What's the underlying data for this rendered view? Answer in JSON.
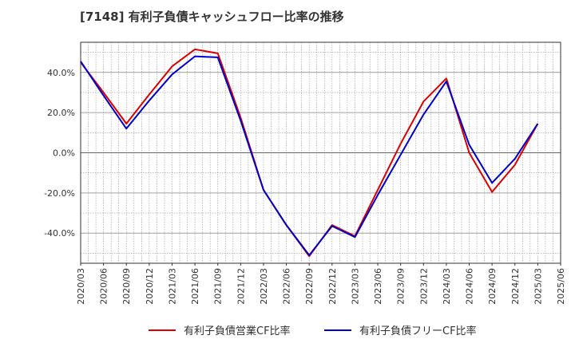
{
  "chart_data": {
    "type": "line",
    "title": "[7148]  有利子負債キャッシュフロー比率の推移",
    "xlabel": "",
    "ylabel": "",
    "ylim": [
      -55,
      55
    ],
    "yticks": [
      -40,
      -20,
      0,
      20,
      40
    ],
    "ytick_labels": [
      "-40.0%",
      "-20.0%",
      "0.0%",
      "20.0%",
      "40.0%"
    ],
    "xticks": [
      "2020/03",
      "2020/06",
      "2020/09",
      "2020/12",
      "2021/03",
      "2021/06",
      "2021/09",
      "2021/12",
      "2022/03",
      "2022/06",
      "2022/09",
      "2022/12",
      "2023/03",
      "2023/06",
      "2023/09",
      "2023/12",
      "2024/03",
      "2024/06",
      "2024/09",
      "2024/12",
      "2025/03",
      "2025/06"
    ],
    "x": [
      "2020/03",
      "2020/06",
      "2020/09",
      "2020/12",
      "2021/03",
      "2021/06",
      "2021/09",
      "2021/12",
      "2022/03",
      "2022/06",
      "2022/09",
      "2022/12",
      "2023/03",
      "2023/06",
      "2023/09",
      "2023/12",
      "2024/03",
      "2024/06",
      "2024/09",
      "2024/12",
      "2025/03"
    ],
    "grid": true,
    "legend_position": "bottom",
    "series": [
      {
        "name": "有利子負債営業CF比率",
        "color": "#dd0000",
        "values": [
          {
            "x": "2020/03",
            "y": 45
          },
          {
            "x": "2020/06",
            "y": 30
          },
          {
            "x": "2020/09",
            "y": 14.5
          },
          {
            "x": "2020/12",
            "y": 29
          },
          {
            "x": "2021/03",
            "y": 43
          },
          {
            "x": "2021/06",
            "y": 51.5
          },
          {
            "x": "2021/09",
            "y": 49.5
          },
          {
            "x": "2021/12",
            "y": 17.5
          },
          {
            "x": "2022/03",
            "y": -18.5
          },
          {
            "x": "2022/06",
            "y": -36
          },
          {
            "x": "2022/09",
            "y": -51.5
          },
          {
            "x": "2022/12",
            "y": -36
          },
          {
            "x": "2023/03",
            "y": -41.5
          },
          {
            "x": "2023/06",
            "y": -18.5
          },
          {
            "x": "2023/09",
            "y": 4.5
          },
          {
            "x": "2023/12",
            "y": 25.5
          },
          {
            "x": "2024/03",
            "y": 37
          },
          {
            "x": "2024/06",
            "y": 0
          },
          {
            "x": "2024/09",
            "y": -19.5
          },
          {
            "x": "2024/12",
            "y": -6
          },
          {
            "x": "2025/03",
            "y": 14.5
          }
        ]
      },
      {
        "name": "有利子負債フリーCF比率",
        "color": "#0000cc",
        "values": [
          {
            "x": "2020/03",
            "y": 45.5
          },
          {
            "x": "2020/06",
            "y": 28.5
          },
          {
            "x": "2020/09",
            "y": 12
          },
          {
            "x": "2020/12",
            "y": 26
          },
          {
            "x": "2021/03",
            "y": 39
          },
          {
            "x": "2021/06",
            "y": 48
          },
          {
            "x": "2021/09",
            "y": 47.5
          },
          {
            "x": "2021/12",
            "y": 16
          },
          {
            "x": "2022/03",
            "y": -18.5
          },
          {
            "x": "2022/06",
            "y": -36
          },
          {
            "x": "2022/09",
            "y": -51
          },
          {
            "x": "2022/12",
            "y": -36.5
          },
          {
            "x": "2023/03",
            "y": -42
          },
          {
            "x": "2023/06",
            "y": -21
          },
          {
            "x": "2023/09",
            "y": -1
          },
          {
            "x": "2023/12",
            "y": 19
          },
          {
            "x": "2024/03",
            "y": 35.5
          },
          {
            "x": "2024/06",
            "y": 4
          },
          {
            "x": "2024/09",
            "y": -15
          },
          {
            "x": "2024/12",
            "y": -3
          },
          {
            "x": "2025/03",
            "y": 14.5
          }
        ]
      }
    ]
  }
}
